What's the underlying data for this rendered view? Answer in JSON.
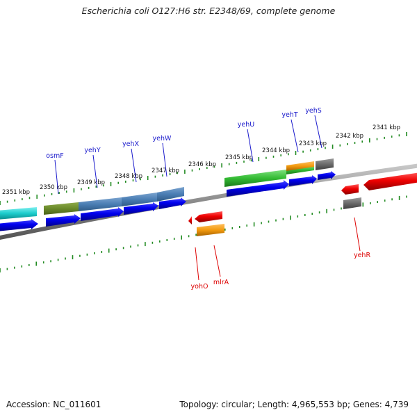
{
  "title": "Escherichia coli O127:H6 str. E2348/69, complete genome",
  "footer": {
    "accession_label": "Accession:",
    "accession": "NC_011601",
    "topology_label": "Topology:",
    "topology": "circular",
    "length_label": "Length:",
    "length": "4,965,553 bp",
    "genes_label": "Genes:",
    "genes": "4,739"
  },
  "scale_labels": [
    "2341 kbp",
    "2342 kbp",
    "2343 kbp",
    "2344 kbp",
    "2345 kbp",
    "2346 kbp",
    "2347 kbp",
    "2348 kbp",
    "2349 kbp",
    "2350 kbp",
    "2351 kbp"
  ],
  "gene_labels_top": [
    "osmF",
    "yehY",
    "yehX",
    "yehW",
    "yehU",
    "yehT",
    "yehS"
  ],
  "gene_labels_bottom": [
    "yohO",
    "mlrA",
    "yehR"
  ],
  "colors": {
    "forward_label": "#1a1acc",
    "reverse_label": "#dd0000",
    "cds_blue": "#0000ee",
    "cds_red": "#ee0000",
    "backbone": "#888888",
    "ticks": "#228b22"
  }
}
